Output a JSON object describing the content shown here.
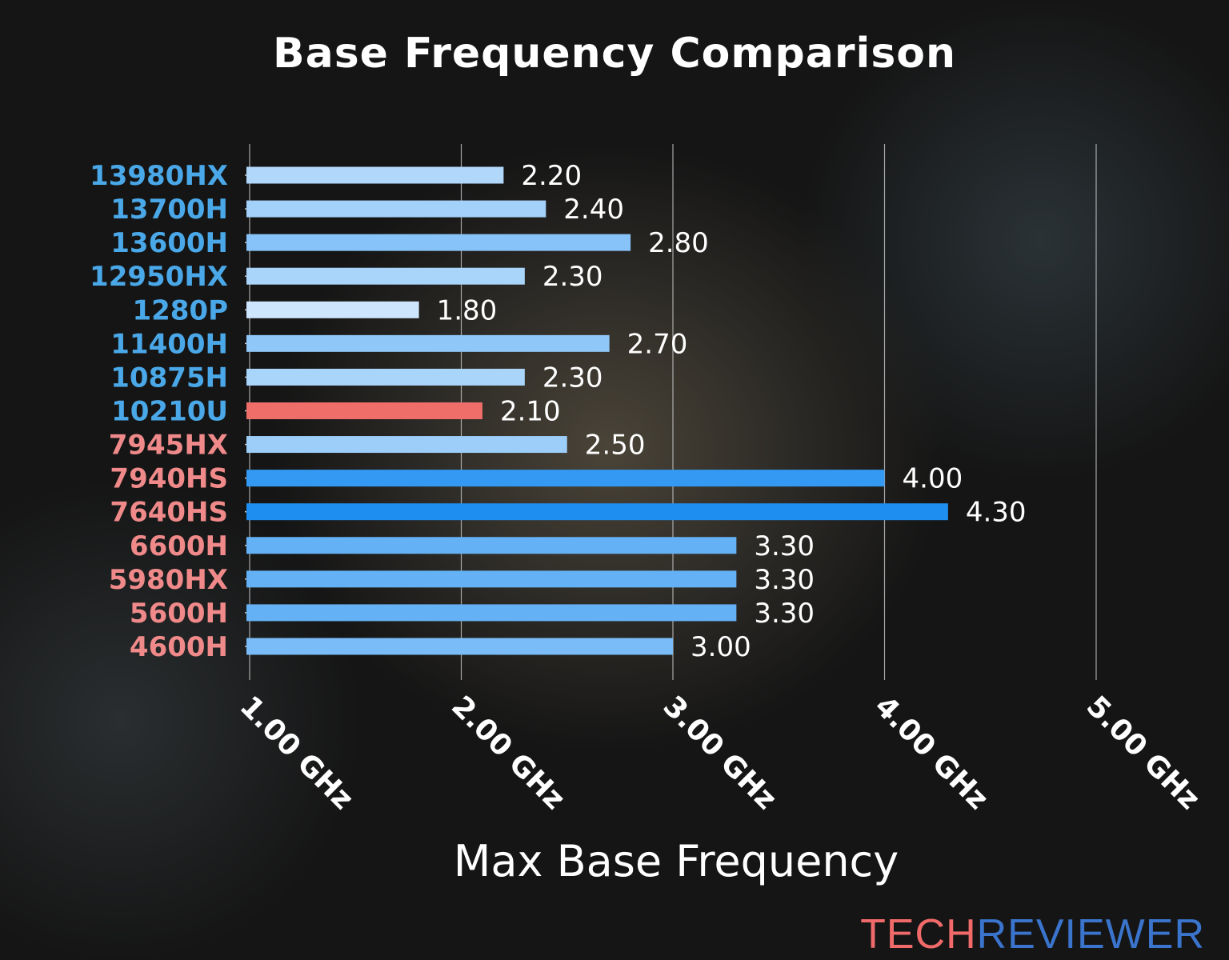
{
  "chart_data": {
    "type": "bar",
    "orientation": "horizontal",
    "title": "Base Frequency Comparison",
    "xlabel": "Max Base Frequency",
    "ylabel": "",
    "xlim": [
      1.0,
      5.0
    ],
    "xticks": [
      1,
      2,
      3,
      4,
      5
    ],
    "xtick_labels": [
      "1.00 GHz",
      "2.00 GHz",
      "3.00 GHz",
      "4.00 GHz",
      "5.00 GHz"
    ],
    "grid": "vertical",
    "categories": [
      "13980HX",
      "13700H",
      "13600H",
      "12950HX",
      "1280P",
      "11400H",
      "10875H",
      "10210U",
      "7945HX",
      "7940HS",
      "7640HS",
      "6600H",
      "5980HX",
      "5600H",
      "4600H"
    ],
    "values": [
      2.2,
      2.4,
      2.8,
      2.3,
      1.8,
      2.7,
      2.3,
      2.1,
      2.5,
      4.0,
      4.3,
      3.3,
      3.3,
      3.3,
      3.0
    ],
    "value_labels": [
      "2.20",
      "2.40",
      "2.80",
      "2.30",
      "1.80",
      "2.70",
      "2.30",
      "2.10",
      "2.50",
      "4.00",
      "4.30",
      "3.30",
      "3.30",
      "3.30",
      "3.00"
    ],
    "category_groups": [
      "intel",
      "intel",
      "intel",
      "intel",
      "intel",
      "intel",
      "intel",
      "intel",
      "amd",
      "amd",
      "amd",
      "amd",
      "amd",
      "amd",
      "amd"
    ],
    "highlighted": "10210U",
    "colors": {
      "intel_label": "#4aa8e8",
      "amd_label": "#f08a8a",
      "highlight_bar": "#f06e6a",
      "bar_low": "#cde6fd",
      "bar_high": "#1e8ff0",
      "text": "#ffffff",
      "grid": "#cccccc"
    }
  },
  "watermark": {
    "part1": "TECH",
    "part2": "REVIEWER"
  }
}
